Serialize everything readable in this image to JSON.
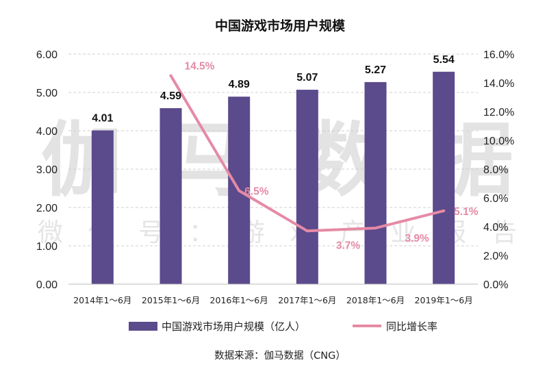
{
  "watermark": {
    "big": "伽马数据",
    "small": "微信号：游戏产业报告"
  },
  "chart_data": {
    "type": "bar",
    "title": "中国游戏市场用户规模",
    "categories": [
      "2014年1～6月",
      "2015年1～6月",
      "2016年1～6月",
      "2017年1～6月",
      "2018年1～6月",
      "2019年1～6月"
    ],
    "series": [
      {
        "name": "中国游戏市场用户规模（亿人）",
        "type": "bar",
        "axis": "left",
        "color": "#5b4a8c",
        "values": [
          4.01,
          4.59,
          4.89,
          5.07,
          5.27,
          5.54
        ],
        "labels": [
          "4.01",
          "4.59",
          "4.89",
          "5.07",
          "5.27",
          "5.54"
        ]
      },
      {
        "name": "同比增长率",
        "type": "line",
        "axis": "right",
        "color": "#e58aa5",
        "values": [
          null,
          14.5,
          6.5,
          3.7,
          3.9,
          5.1
        ],
        "labels": [
          null,
          "14.5%",
          "6.5%",
          "3.7%",
          "3.9%",
          "5.1%"
        ]
      }
    ],
    "y_left": {
      "range": [
        0,
        6
      ],
      "ticks": [
        0,
        1,
        2,
        3,
        4,
        5,
        6
      ],
      "tick_labels": [
        "0.00",
        "1.00",
        "2.00",
        "3.00",
        "4.00",
        "5.00",
        "6.00"
      ]
    },
    "y_right": {
      "range": [
        0,
        16
      ],
      "ticks": [
        0,
        2,
        4,
        6,
        8,
        10,
        12,
        14,
        16
      ],
      "tick_labels": [
        "0.0%",
        "2.0%",
        "4.0%",
        "6.0%",
        "8.0%",
        "10.0%",
        "12.0%",
        "14.0%",
        "16.0%"
      ]
    },
    "grid": true,
    "legend_position": "bottom"
  },
  "source": "数据来源：伽马数据（CNG）"
}
